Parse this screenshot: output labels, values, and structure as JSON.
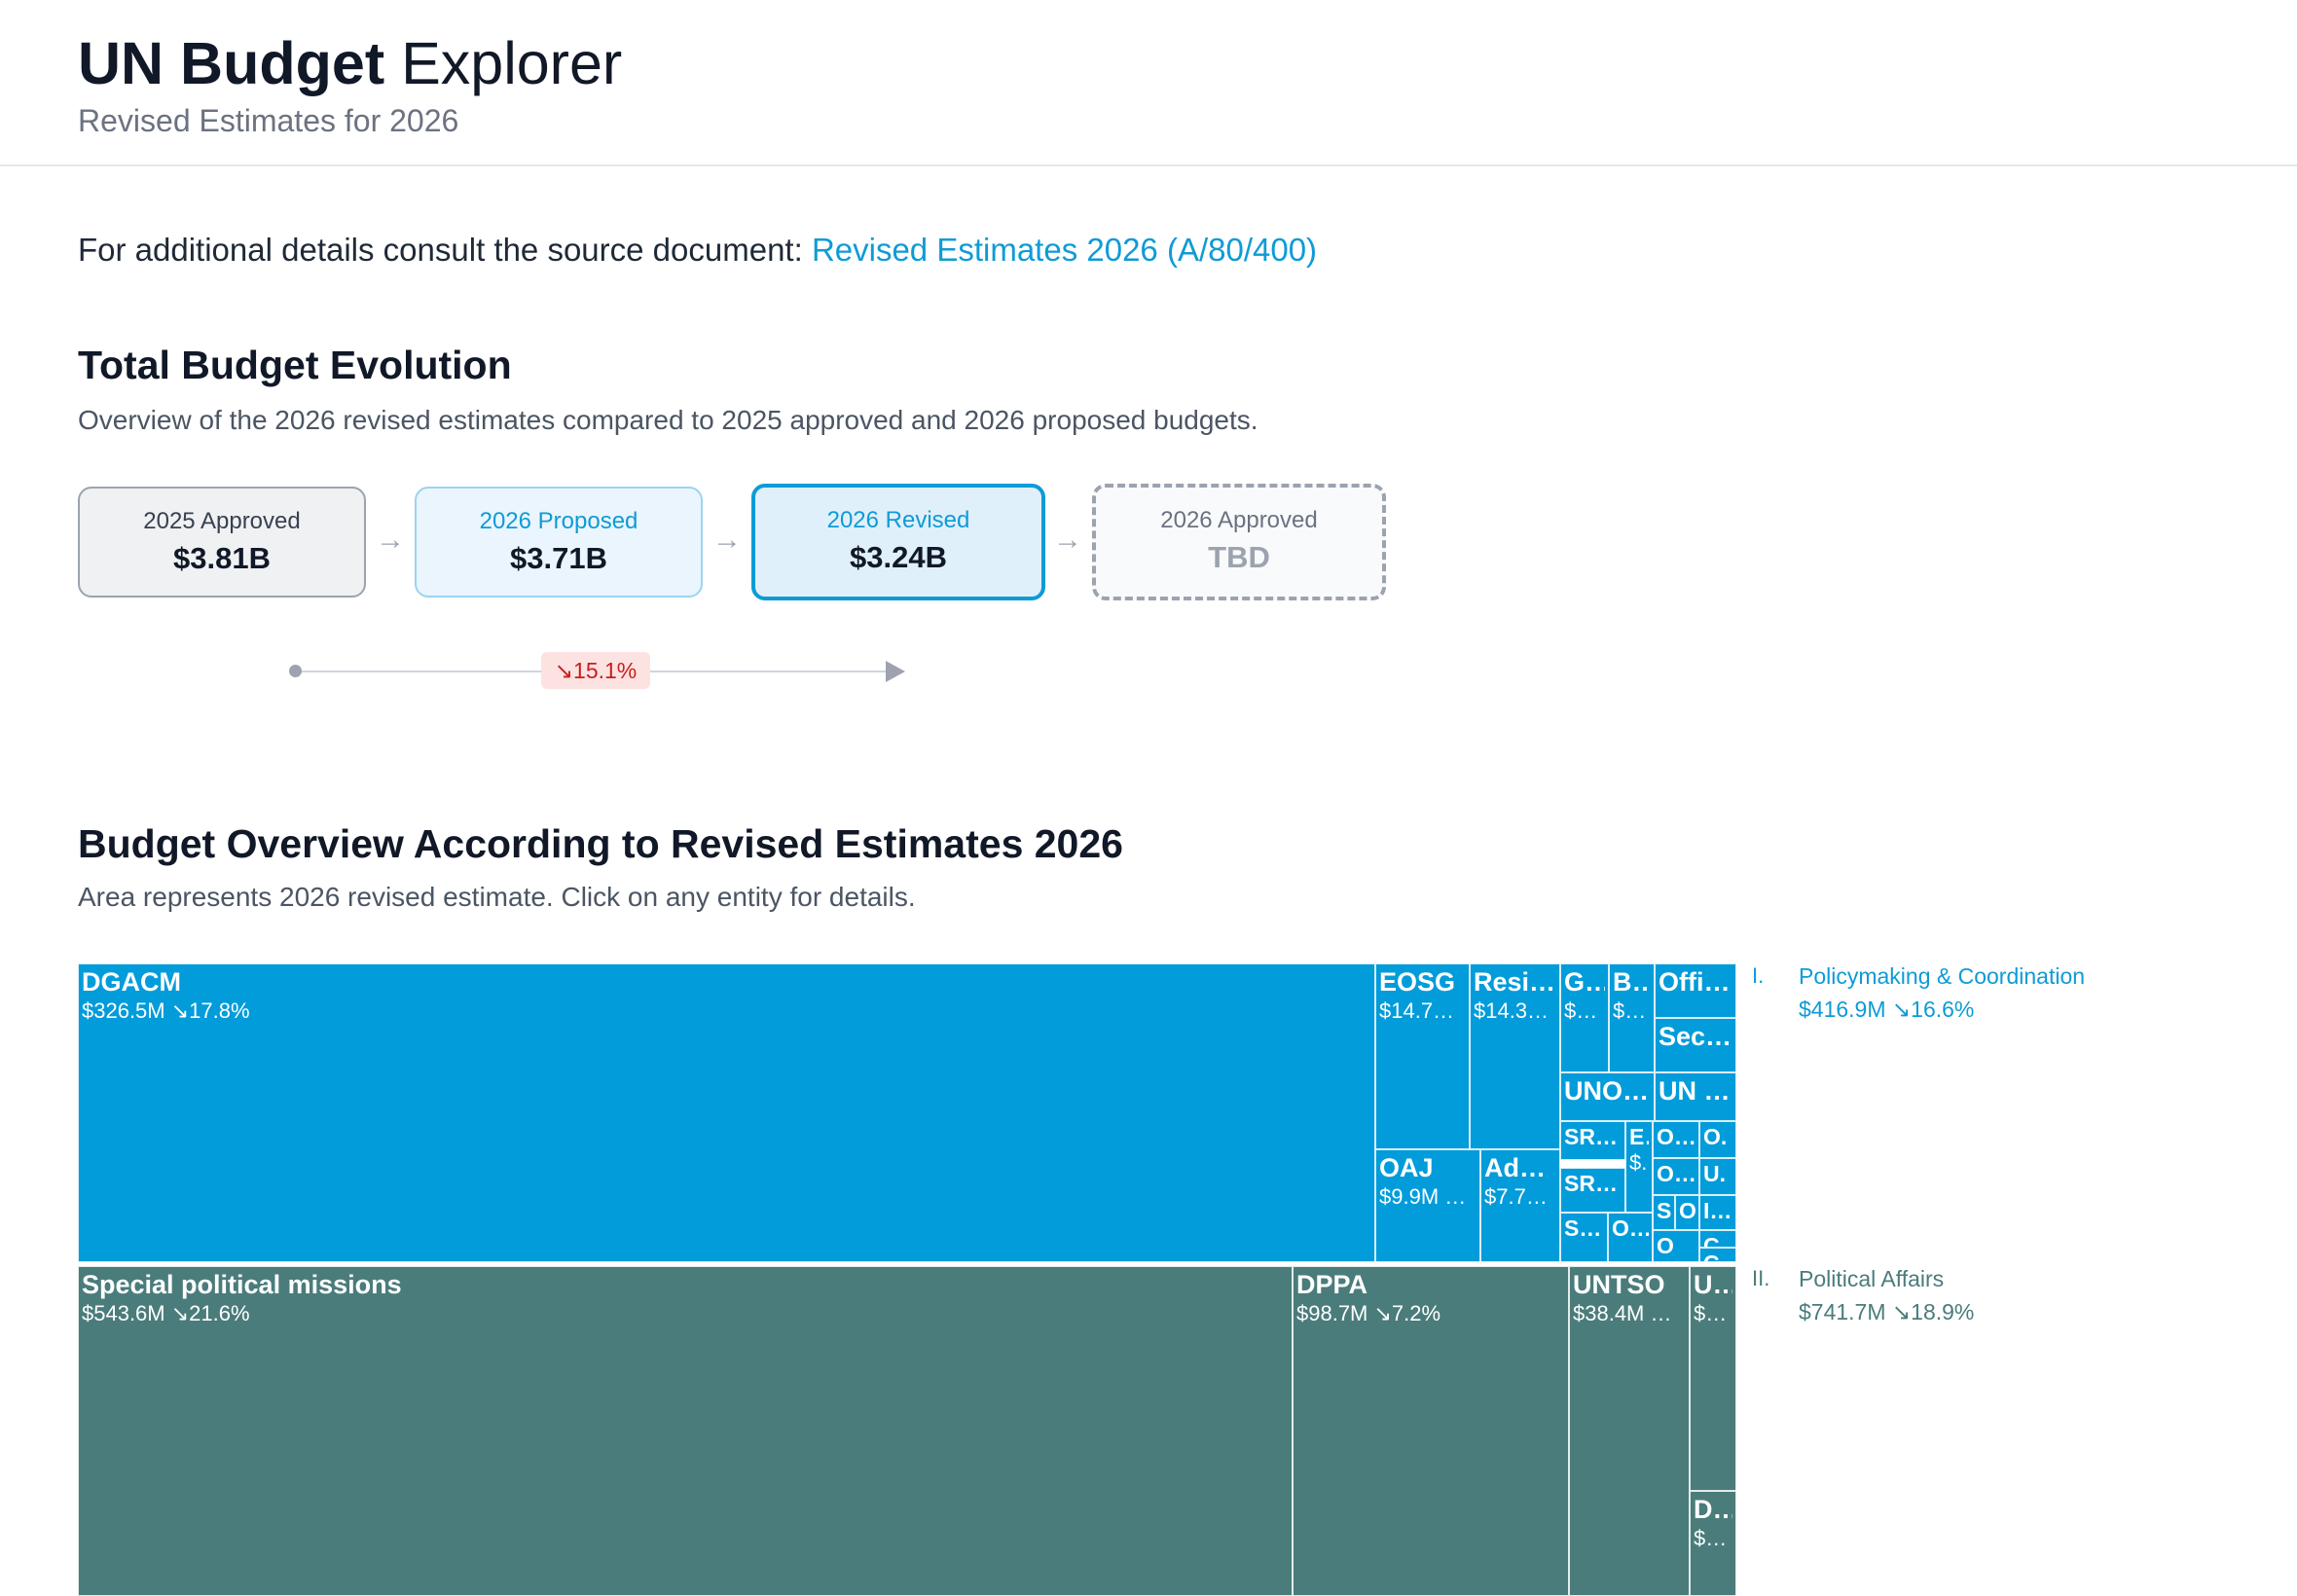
{
  "header": {
    "title_bold": "UN Budget",
    "title_light": "Explorer",
    "subtitle": "Revised Estimates for 2026"
  },
  "source": {
    "prefix": "For additional details consult the source document:",
    "link_text": "Revised Estimates 2026 (A/80/400)"
  },
  "evolution": {
    "title": "Total Budget Evolution",
    "description": "Overview of the 2026 revised estimates compared to 2025 approved and 2026 proposed budgets.",
    "stages": [
      {
        "label": "2025 Approved",
        "value": "$3.81B"
      },
      {
        "label": "2026 Proposed",
        "value": "$3.71B"
      },
      {
        "label": "2026 Revised",
        "value": "$3.24B"
      },
      {
        "label": "2026 Approved",
        "value": "TBD"
      }
    ],
    "arrow_glyph": "→",
    "change": "↘15.1%"
  },
  "overview": {
    "title": "Budget Overview According to Revised Estimates 2026",
    "description": "Area represents 2026 revised estimate. Click on any entity for details.",
    "colors": {
      "policymaking": "#029cdb",
      "political": "#4a7c7b"
    },
    "legend": [
      {
        "num": "I.",
        "name": "Policymaking & Coordination",
        "value": "$416.9M ↘16.6%",
        "color": "#0e9bd6"
      },
      {
        "num": "II.",
        "name": "Political Affairs",
        "value": "$741.7M ↘18.9%",
        "color": "#4a7c7b"
      }
    ],
    "cells": {
      "dgacm": {
        "name": "DGACM",
        "value": "$326.5M ↘17.8%"
      },
      "eosg": {
        "name": "EOSG",
        "value": "$14.7…"
      },
      "resi": {
        "name": "Resi…",
        "value": "$14.3…"
      },
      "g": {
        "name": "G…",
        "value": "$…"
      },
      "b": {
        "name": "B…",
        "value": "$…"
      },
      "offi": {
        "name": "Offi…"
      },
      "sec": {
        "name": "Sec…"
      },
      "uno": {
        "name": "UNO…"
      },
      "un": {
        "name": "UN …"
      },
      "oaj": {
        "name": "OAJ",
        "value": "$9.9M …"
      },
      "adv": {
        "name": "Adv…",
        "value": "$7.7…"
      },
      "sr1": {
        "name": "SR…"
      },
      "e": {
        "name": "E.",
        "value": "$."
      },
      "o1": {
        "name": "O…"
      },
      "o2": {
        "name": "O."
      },
      "sr2": {
        "name": "SR…"
      },
      "o3": {
        "name": "O…"
      },
      "u1": {
        "name": "U."
      },
      "s1": {
        "name": "S"
      },
      "c1": {
        "name": "O"
      },
      "i1": {
        "name": "I…"
      },
      "s2": {
        "name": "S…"
      },
      "o4": {
        "name": "O…"
      },
      "o5": {
        "name": "O"
      },
      "c2": {
        "name": "C"
      },
      "c3": {
        "name": "C"
      },
      "spm": {
        "name": "Special political missions",
        "value": "$543.6M ↘21.6%"
      },
      "dppa": {
        "name": "DPPA",
        "value": "$98.7M ↘7.2%"
      },
      "untso": {
        "name": "UNTSO",
        "value": "$38.4M …"
      },
      "u2": {
        "name": "U…",
        "value": "$…"
      },
      "d": {
        "name": "D…",
        "value": "$…"
      }
    }
  }
}
